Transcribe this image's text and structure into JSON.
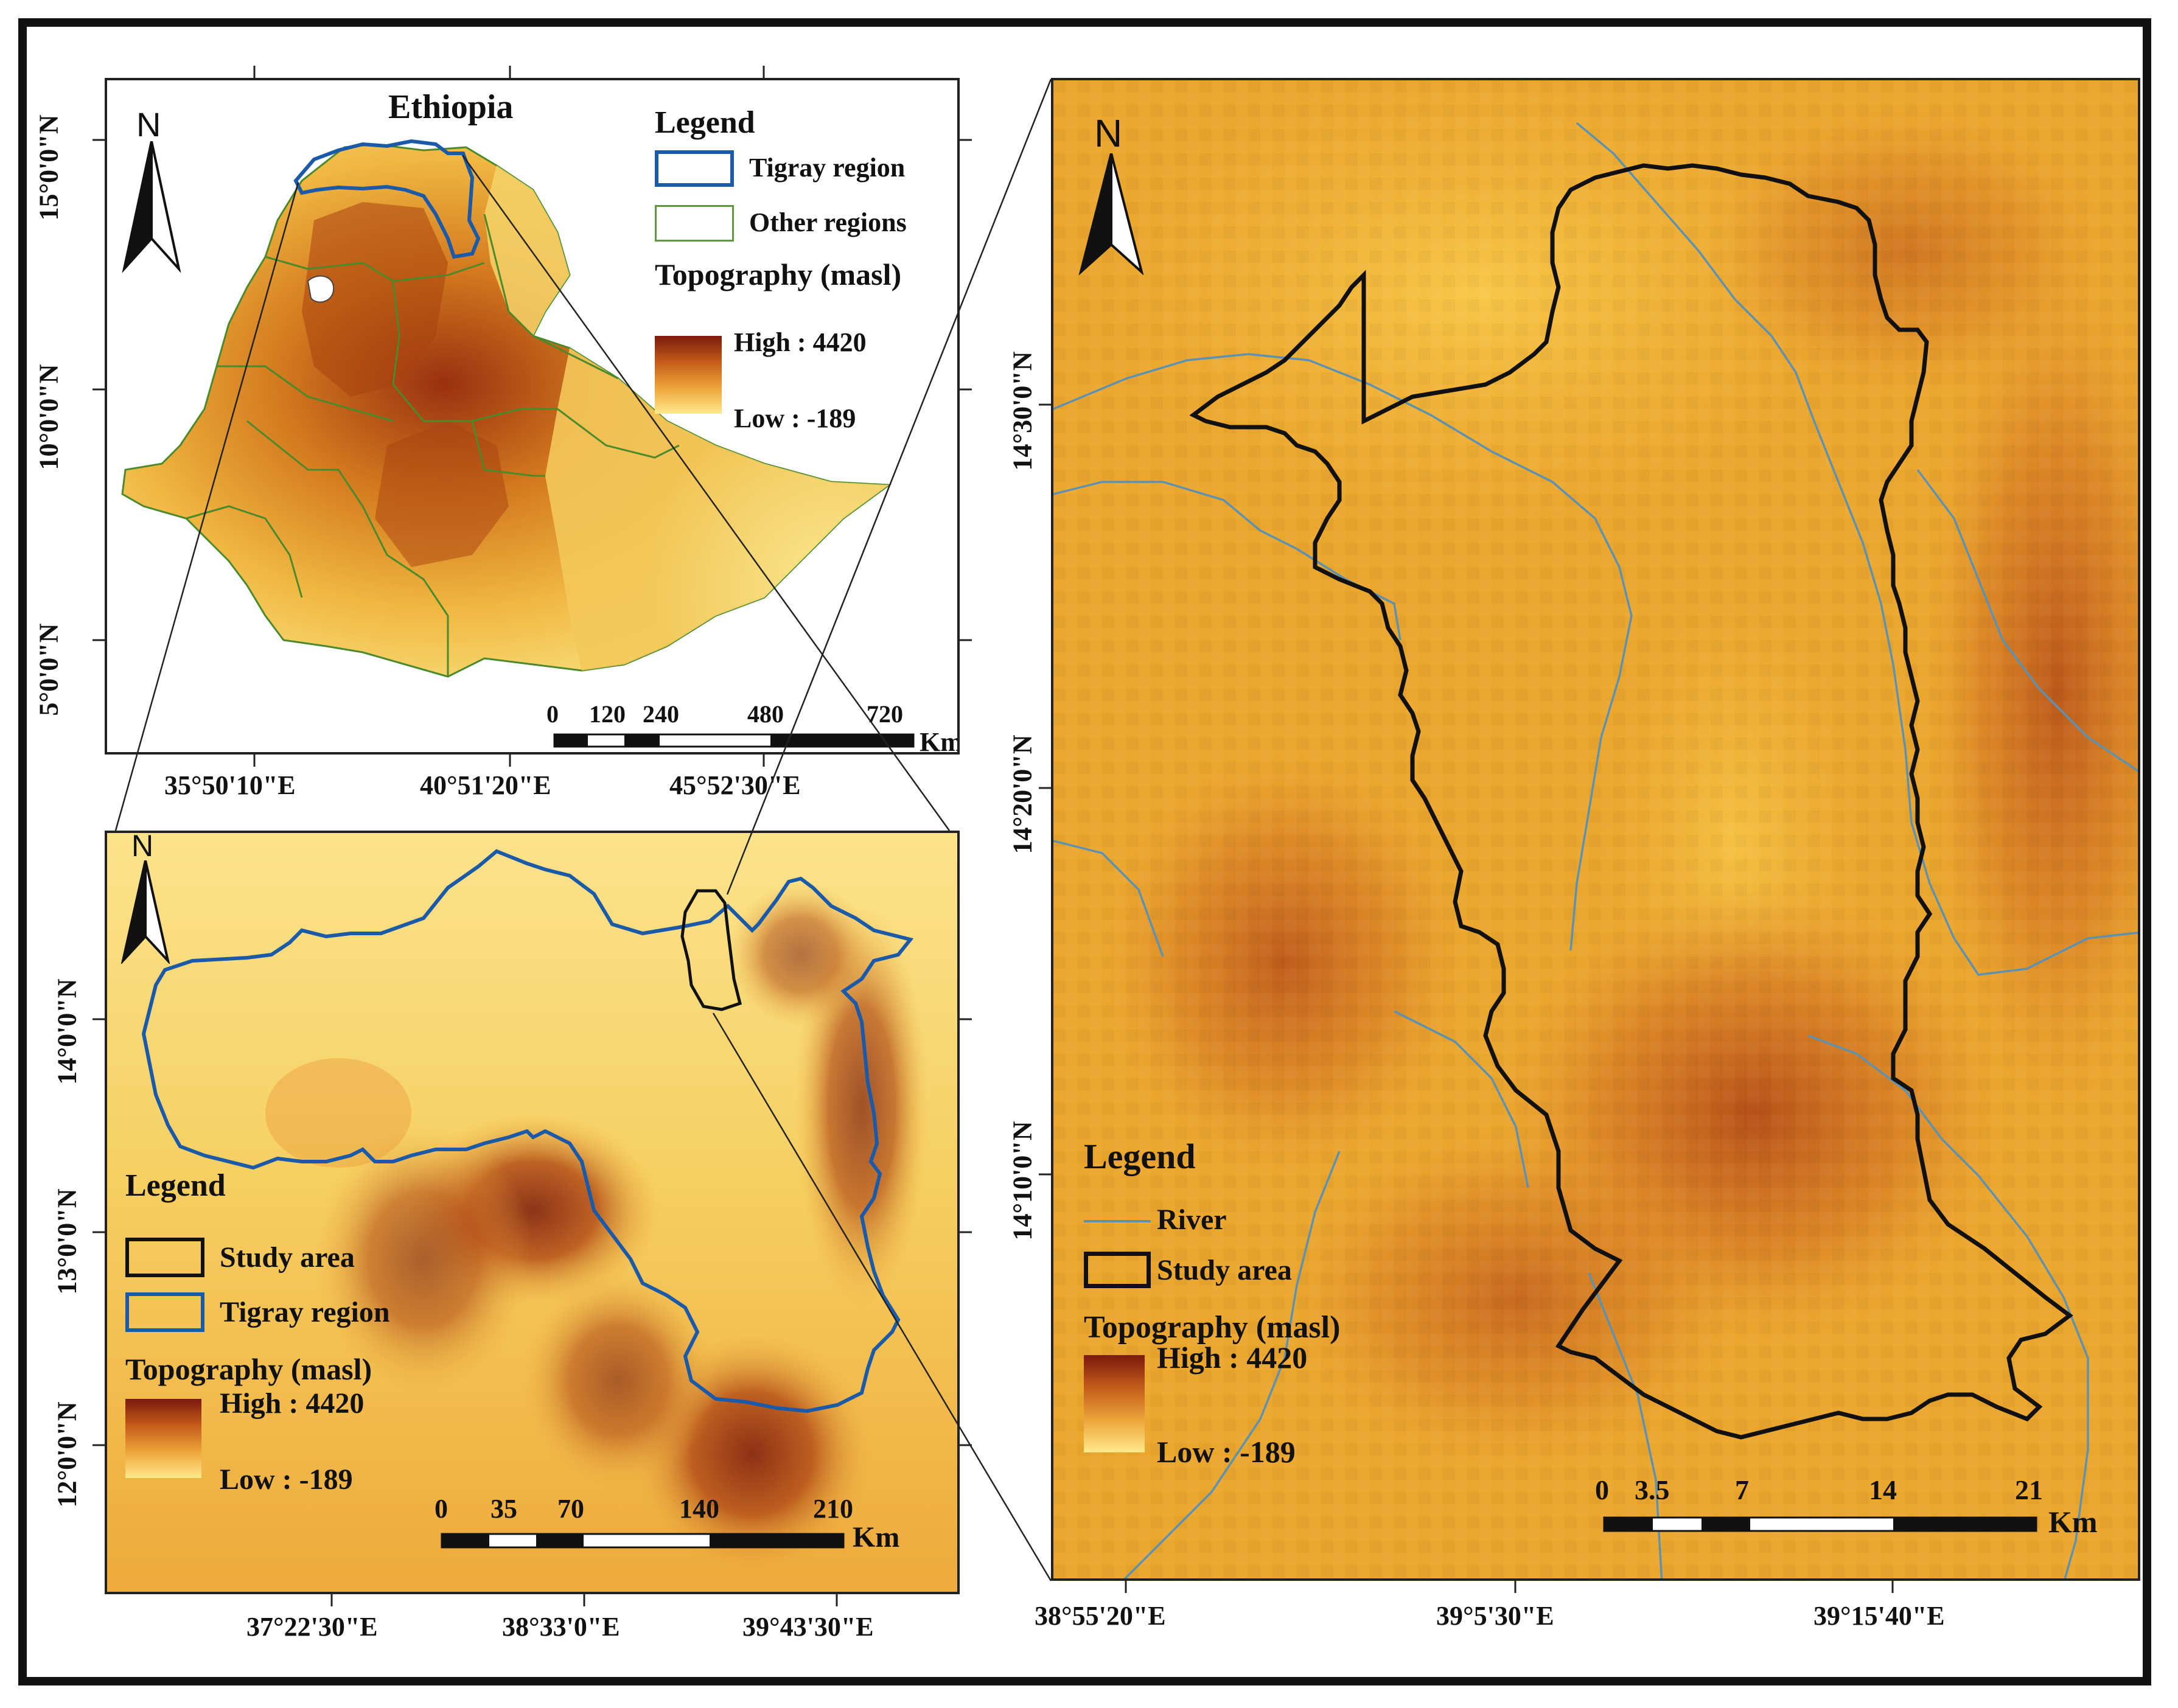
{
  "ethiopia_map": {
    "title": "Ethiopia",
    "north": "N",
    "lat_labels": [
      "15°0'0\"N",
      "10°0'0\"N",
      "5°0'0\"N"
    ],
    "lon_labels": [
      "35°50'10\"E",
      "40°51'20\"E",
      "45°52'30\"E"
    ],
    "legend": {
      "title": "Legend",
      "items": [
        {
          "label": "Tigray region",
          "color": "#1a5aa8"
        },
        {
          "label": "Other regions",
          "color": "#5a9a3a"
        }
      ],
      "topo_title": "Topography (masl)",
      "high": "High : 4420",
      "low": "Low : -189"
    },
    "scalebar": {
      "ticks": [
        "0",
        "120",
        "240",
        "480",
        "720"
      ],
      "unit": "Km"
    }
  },
  "tigray_map": {
    "north": "N",
    "lat_labels": [
      "14°0'0\"N",
      "13°0'0\"N",
      "12°0'0\"N"
    ],
    "lon_labels": [
      "37°22'30\"E",
      "38°33'0\"E",
      "39°43'30\"E"
    ],
    "legend": {
      "title": "Legend",
      "items": [
        {
          "label": "Study area",
          "color": "#111111"
        },
        {
          "label": "Tigray region",
          "color": "#1a5aa8"
        }
      ],
      "topo_title": "Topography (masl)",
      "high": "High : 4420",
      "low": "Low : -189"
    },
    "scalebar": {
      "ticks": [
        "0",
        "35",
        "70",
        "140",
        "210"
      ],
      "unit": "Km"
    }
  },
  "study_map": {
    "north": "N",
    "lat_labels": [
      "14°30'0\"N",
      "14°20'0\"N",
      "14°10'0\"N"
    ],
    "lon_labels": [
      "38°55'20\"E",
      "39°5'30\"E",
      "39°15'40\"E"
    ],
    "legend": {
      "title": "Legend",
      "items": [
        {
          "label": "River",
          "color": "#4a8ab0"
        },
        {
          "label": "Study area",
          "color": "#111111"
        }
      ],
      "topo_title": "Topography (masl)",
      "high": "High : 4420",
      "low": "Low : -189"
    },
    "scalebar": {
      "ticks": [
        "0",
        "3.5",
        "7",
        "14",
        "21"
      ],
      "unit": "Km"
    }
  },
  "colors": {
    "topo_high": "#7a1a0c",
    "topo_low": "#ffe98a",
    "tigray_boundary": "#1a5aa8",
    "other_regions": "#5a9a3a",
    "river": "#4a8ab0",
    "study_area": "#111111"
  }
}
